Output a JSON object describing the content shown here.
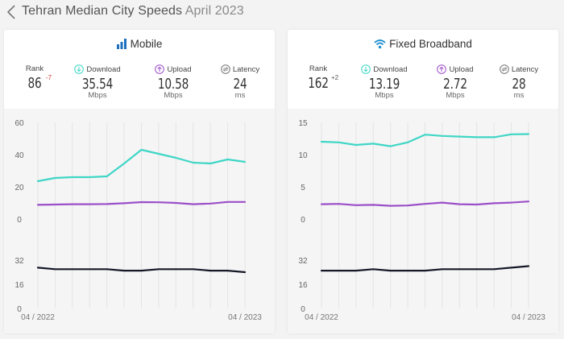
{
  "page": {
    "title": "Tehran Median City Speeds",
    "subtitle": "April 2023"
  },
  "panels": [
    {
      "key": "mobile",
      "title": "Mobile",
      "icon": "signal-bars-icon",
      "stats": {
        "rank": {
          "label": "Rank",
          "value": "86",
          "change": "-7"
        },
        "download": {
          "label": "Download",
          "value": "35.54",
          "unit": "Mbps"
        },
        "upload": {
          "label": "Upload",
          "value": "10.58",
          "unit": "Mbps"
        },
        "latency": {
          "label": "Latency",
          "value": "24",
          "unit": "ms"
        }
      }
    },
    {
      "key": "fixed",
      "title": "Fixed Broadband",
      "icon": "wifi-icon",
      "stats": {
        "rank": {
          "label": "Rank",
          "value": "162",
          "change": "+2"
        },
        "download": {
          "label": "Download",
          "value": "13.19",
          "unit": "Mbps"
        },
        "upload": {
          "label": "Upload",
          "value": "2.72",
          "unit": "Mbps"
        },
        "latency": {
          "label": "Latency",
          "value": "28",
          "unit": "ms"
        }
      }
    }
  ],
  "colors": {
    "download": "#3fd6c6",
    "upload": "#9b4fc9",
    "latency": "#141826",
    "rank_down": "#d23b3b"
  },
  "chart_data": [
    {
      "type": "line",
      "panel": "mobile",
      "x_labels": [
        "04 / 2022",
        "04 / 2023"
      ],
      "x": [
        "04/2022",
        "05/2022",
        "06/2022",
        "07/2022",
        "08/2022",
        "09/2022",
        "10/2022",
        "11/2022",
        "12/2022",
        "01/2023",
        "02/2023",
        "03/2023",
        "04/2023"
      ],
      "speed_axis": {
        "ylim": [
          0,
          60
        ],
        "ticks": [
          "0",
          "20",
          "40",
          "60"
        ]
      },
      "latency_axis": {
        "ylim": [
          0,
          32
        ],
        "ticks": [
          "0",
          "16",
          "32"
        ]
      },
      "series": [
        {
          "axis": "speed",
          "values": [
            23.5,
            25.5,
            26,
            26,
            26.5,
            34.5,
            43,
            40.5,
            38,
            35,
            34.5,
            37,
            35.5
          ]
        },
        {
          "axis": "speed",
          "values": [
            8.8,
            9.0,
            9.2,
            9.2,
            9.3,
            9.8,
            10.5,
            10.4,
            10.0,
            9.2,
            9.6,
            10.6,
            10.58
          ]
        },
        {
          "axis": "latency",
          "values": [
            27,
            26,
            26,
            26,
            26,
            25,
            25,
            26,
            26,
            26,
            25,
            25,
            24
          ]
        }
      ]
    },
    {
      "type": "line",
      "panel": "fixed",
      "x_labels": [
        "04 / 2022",
        "04 / 2023"
      ],
      "x": [
        "04/2022",
        "05/2022",
        "06/2022",
        "07/2022",
        "08/2022",
        "09/2022",
        "10/2022",
        "11/2022",
        "12/2022",
        "01/2023",
        "02/2023",
        "03/2023",
        "04/2023"
      ],
      "speed_axis": {
        "ylim": [
          0,
          15
        ],
        "ticks": [
          "0",
          "5",
          "10",
          "15"
        ]
      },
      "latency_axis": {
        "ylim": [
          0,
          32
        ],
        "ticks": [
          "0",
          "16",
          "32"
        ]
      },
      "series": [
        {
          "axis": "speed",
          "values": [
            12.0,
            11.9,
            11.5,
            11.7,
            11.3,
            11.9,
            13.1,
            12.9,
            12.8,
            12.7,
            12.7,
            13.15,
            13.19
          ]
        },
        {
          "axis": "speed",
          "values": [
            2.3,
            2.35,
            2.15,
            2.2,
            2.05,
            2.1,
            2.35,
            2.55,
            2.3,
            2.25,
            2.45,
            2.55,
            2.72
          ]
        },
        {
          "axis": "latency",
          "values": [
            25,
            25,
            25,
            26,
            25,
            25,
            25,
            26,
            26,
            26,
            26,
            27,
            28
          ]
        }
      ]
    }
  ]
}
